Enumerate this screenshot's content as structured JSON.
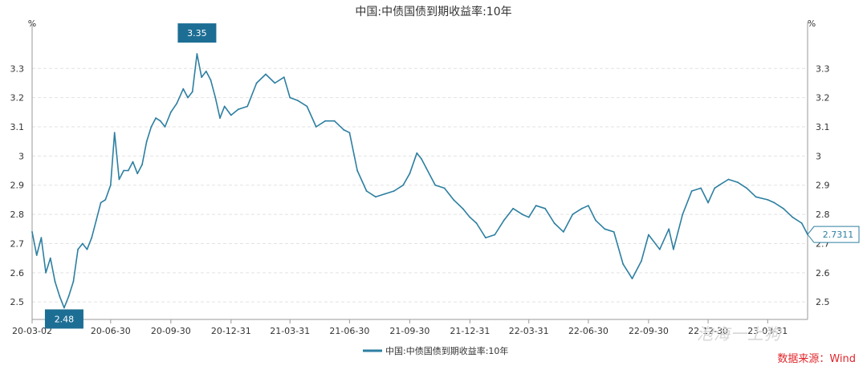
{
  "chart_data": {
    "type": "line",
    "title": "中国:中债国债到期收益率:10年",
    "ylabel_left": "%",
    "ylabel_right": "%",
    "ylim": [
      2.44,
      3.43
    ],
    "yticks": [
      2.5,
      2.6,
      2.7,
      2.8,
      2.9,
      3.0,
      3.1,
      3.2,
      3.3
    ],
    "ytick_labels": [
      "2.5",
      "2.6",
      "2.7",
      "2.8",
      "2.9",
      "3",
      "3.1",
      "3.2",
      "3.3"
    ],
    "xlim": [
      "2020-03-02",
      "2023-05-31"
    ],
    "xticks": [
      "2020-03-02",
      "2020-06-30",
      "2020-09-30",
      "2020-12-31",
      "2021-03-31",
      "2021-06-30",
      "2021-09-30",
      "2021-12-31",
      "2022-03-31",
      "2022-06-30",
      "2022-09-30",
      "2022-12-30",
      "2023-03-31"
    ],
    "xtick_labels": [
      "20-03-02",
      "20-06-30",
      "20-09-30",
      "20-12-31",
      "21-03-31",
      "21-06-30",
      "21-09-30",
      "21-12-31",
      "22-03-31",
      "22-06-30",
      "22-09-30",
      "22-12-30",
      "23-03-31"
    ],
    "grid": true,
    "legend_position": "bottom",
    "series": [
      {
        "name": "中国:中债国债到期收益率:10年",
        "color": "#2d7fa1",
        "x": [
          "2020-03-02",
          "2020-03-09",
          "2020-03-16",
          "2020-03-23",
          "2020-03-30",
          "2020-04-06",
          "2020-04-13",
          "2020-04-20",
          "2020-04-27",
          "2020-05-04",
          "2020-05-11",
          "2020-05-18",
          "2020-05-25",
          "2020-06-01",
          "2020-06-08",
          "2020-06-15",
          "2020-06-22",
          "2020-06-30",
          "2020-07-06",
          "2020-07-13",
          "2020-07-20",
          "2020-07-27",
          "2020-08-03",
          "2020-08-10",
          "2020-08-17",
          "2020-08-24",
          "2020-08-31",
          "2020-09-07",
          "2020-09-14",
          "2020-09-21",
          "2020-09-30",
          "2020-10-09",
          "2020-10-19",
          "2020-10-26",
          "2020-11-02",
          "2020-11-09",
          "2020-11-16",
          "2020-11-23",
          "2020-11-30",
          "2020-12-07",
          "2020-12-14",
          "2020-12-21",
          "2020-12-31",
          "2021-01-11",
          "2021-01-25",
          "2021-02-08",
          "2021-02-22",
          "2021-03-08",
          "2021-03-22",
          "2021-03-31",
          "2021-04-12",
          "2021-04-26",
          "2021-05-10",
          "2021-05-24",
          "2021-06-07",
          "2021-06-21",
          "2021-06-30",
          "2021-07-12",
          "2021-07-26",
          "2021-08-09",
          "2021-08-23",
          "2021-09-06",
          "2021-09-20",
          "2021-09-30",
          "2021-10-11",
          "2021-10-18",
          "2021-10-25",
          "2021-11-08",
          "2021-11-22",
          "2021-12-06",
          "2021-12-20",
          "2021-12-31",
          "2022-01-10",
          "2022-01-24",
          "2022-02-07",
          "2022-02-21",
          "2022-03-07",
          "2022-03-21",
          "2022-03-31",
          "2022-04-11",
          "2022-04-25",
          "2022-05-09",
          "2022-05-23",
          "2022-06-06",
          "2022-06-20",
          "2022-06-30",
          "2022-07-11",
          "2022-07-25",
          "2022-08-08",
          "2022-08-22",
          "2022-09-05",
          "2022-09-19",
          "2022-09-30",
          "2022-10-17",
          "2022-10-31",
          "2022-11-07",
          "2022-11-14",
          "2022-11-21",
          "2022-12-05",
          "2022-12-19",
          "2022-12-30",
          "2023-01-09",
          "2023-01-16",
          "2023-01-30",
          "2023-02-13",
          "2023-02-27",
          "2023-03-13",
          "2023-03-31",
          "2023-04-10",
          "2023-04-24",
          "2023-05-08",
          "2023-05-22",
          "2023-05-31"
        ],
        "values": [
          2.74,
          2.66,
          2.72,
          2.6,
          2.65,
          2.57,
          2.52,
          2.48,
          2.52,
          2.57,
          2.68,
          2.7,
          2.68,
          2.72,
          2.78,
          2.84,
          2.85,
          2.9,
          3.08,
          2.92,
          2.95,
          2.95,
          2.98,
          2.94,
          2.97,
          3.05,
          3.1,
          3.13,
          3.12,
          3.1,
          3.15,
          3.18,
          3.23,
          3.2,
          3.22,
          3.35,
          3.27,
          3.29,
          3.26,
          3.2,
          3.13,
          3.17,
          3.14,
          3.16,
          3.17,
          3.25,
          3.28,
          3.25,
          3.27,
          3.2,
          3.19,
          3.17,
          3.1,
          3.12,
          3.12,
          3.09,
          3.08,
          2.95,
          2.88,
          2.86,
          2.87,
          2.88,
          2.9,
          2.94,
          3.01,
          2.99,
          2.96,
          2.9,
          2.89,
          2.85,
          2.82,
          2.79,
          2.77,
          2.72,
          2.73,
          2.78,
          2.82,
          2.8,
          2.79,
          2.83,
          2.82,
          2.77,
          2.74,
          2.8,
          2.82,
          2.83,
          2.78,
          2.75,
          2.74,
          2.63,
          2.58,
          2.64,
          2.73,
          2.68,
          2.75,
          2.68,
          2.74,
          2.8,
          2.88,
          2.89,
          2.84,
          2.89,
          2.9,
          2.92,
          2.91,
          2.89,
          2.86,
          2.85,
          2.84,
          2.82,
          2.79,
          2.77,
          2.7311
        ]
      }
    ],
    "annotations": [
      {
        "label": "3.35",
        "x": "2020-11-09",
        "y": 3.35
      },
      {
        "label": "2.48",
        "x": "2020-04-20",
        "y": 2.48
      },
      {
        "label": "2.7311",
        "x": "2023-05-31",
        "y": 2.7311
      }
    ]
  },
  "footer": {
    "source": "数据来源：Wind",
    "watermark": "泡海一上狗"
  },
  "colors": {
    "line": "#2d7fa1",
    "label_bg": "#1d6e94",
    "grid": "#e2e2e2",
    "axis": "#999999",
    "text": "#333333",
    "source": "#e0262b"
  }
}
